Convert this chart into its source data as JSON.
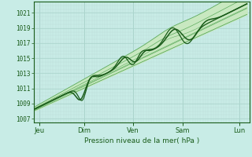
{
  "xlabel": "Pression niveau de la mer( hPa )",
  "bg_color": "#c8ece6",
  "plot_bg_color": "#c8ece6",
  "grid_color_major": "#aad4cc",
  "grid_color_minor": "#bcddd8",
  "line_color_dark": "#1a5c1a",
  "line_color_light": "#5aaa5a",
  "fill_color_light": "#c8e8c0",
  "ylim": [
    1006.5,
    1022.5
  ],
  "yticks": [
    1007,
    1009,
    1011,
    1013,
    1015,
    1017,
    1019,
    1021
  ],
  "x_day_labels": [
    "Jeu",
    "Dim",
    "Ven",
    "Sam",
    "Lun"
  ],
  "x_day_positions": [
    0.08,
    0.95,
    1.9,
    2.85,
    3.95
  ],
  "xlim": [
    -0.02,
    4.15
  ]
}
